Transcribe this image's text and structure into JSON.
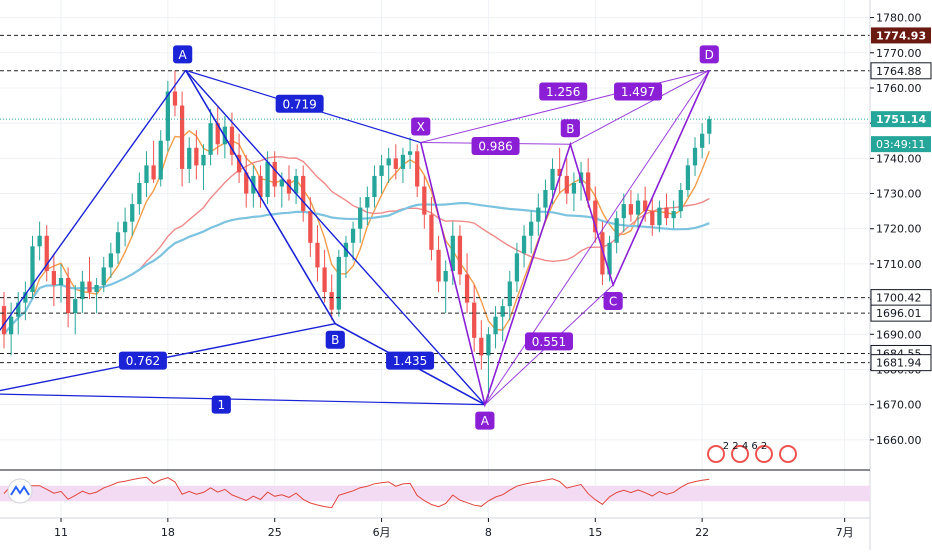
{
  "chart_data": {
    "type": "line",
    "instrument_axis": {
      "price_ticks": [
        1660,
        1670,
        1680,
        1690,
        1700,
        1710,
        1720,
        1730,
        1740,
        1750,
        1760,
        1770,
        1780
      ],
      "price_tick_labels": [
        "1660.00",
        "1670.00",
        "1680.00",
        "1690.00",
        "1700.00",
        "1710.00",
        "1720.00",
        "1730.00",
        "1740.00",
        "1750.00",
        "1760.00",
        "1770.00",
        "1780.00"
      ],
      "ylim": [
        1652,
        1785
      ]
    },
    "x_tick_labels": [
      {
        "i": 8,
        "label": "11"
      },
      {
        "i": 23,
        "label": "18"
      },
      {
        "i": 38,
        "label": "25"
      },
      {
        "i": 53,
        "label": "6月"
      },
      {
        "i": 68,
        "label": "8"
      },
      {
        "i": 83,
        "label": "15"
      },
      {
        "i": 98,
        "label": "22"
      },
      {
        "i": 118,
        "label": "7月"
      }
    ],
    "x_count": 122,
    "horizontal_levels": [
      {
        "value": 1774.93,
        "label": "1774.93",
        "style": "dashed",
        "badge_color": "#6b1a12"
      },
      {
        "value": 1764.88,
        "label": "1764.88",
        "style": "dashed",
        "badge_color": "#ffffff"
      },
      {
        "value": 1751.14,
        "label": "1751.14",
        "style": "dotted",
        "badge_color": "#26a69a"
      },
      {
        "value": 1700.42,
        "label": "1700.42",
        "style": "dashed",
        "badge_color": "#ffffff"
      },
      {
        "value": 1696.01,
        "label": "1696.01",
        "style": "dashed",
        "badge_color": "#ffffff"
      },
      {
        "value": 1684.55,
        "label": "1684.55",
        "style": "dashed",
        "badge_color": "#ffffff"
      },
      {
        "value": 1681.94,
        "label": "1681.94",
        "style": "dashed",
        "badge_color": "#ffffff"
      }
    ],
    "countdown_label": "03:49:11",
    "close_price": 1751.14,
    "pattern_blue": {
      "points": [
        {
          "label": "A",
          "i": 25.5,
          "price": 1765.0
        },
        {
          "label": "B",
          "i": 46.5,
          "price": 1693.0
        },
        {
          "label": "",
          "i": 67.5,
          "price": 1670.0
        }
      ],
      "left_ext": [
        {
          "i": -1,
          "price": 1693.0
        },
        {
          "i": -1,
          "price": 1673.0
        }
      ],
      "ratios": [
        {
          "text": "0.719",
          "i": 41.5,
          "price": 1755.5
        },
        {
          "text": "0.762",
          "i": 19.5,
          "price": 1682.5
        },
        {
          "text": "1.435",
          "i": 57,
          "price": 1682.5
        },
        {
          "text": "1",
          "i": 30.5,
          "price": 1670.0
        }
      ],
      "color": "#1b23d6"
    },
    "pattern_purple": {
      "points": [
        {
          "label": "X",
          "i": 58.5,
          "price": 1744.5
        },
        {
          "label": "A",
          "i": 67.5,
          "price": 1670.0
        },
        {
          "label": "B",
          "i": 79.5,
          "price": 1744.0
        },
        {
          "label": "C",
          "i": 85.5,
          "price": 1704.0
        },
        {
          "label": "D",
          "i": 99,
          "price": 1765.0
        }
      ],
      "ratios": [
        {
          "text": "0.986",
          "i": 69,
          "price": 1743.5
        },
        {
          "text": "1.256",
          "i": 78.5,
          "price": 1759.0
        },
        {
          "text": "1.497",
          "i": 89,
          "price": 1759.0
        },
        {
          "text": "0.551",
          "i": 76.5,
          "price": 1688.0
        }
      ],
      "color": "#8a1fd6"
    },
    "candles": [
      [
        1698,
        1702,
        1686,
        1690
      ],
      [
        1690,
        1699,
        1684,
        1695
      ],
      [
        1695,
        1702,
        1690,
        1699
      ],
      [
        1699,
        1705,
        1694,
        1702
      ],
      [
        1702,
        1718,
        1700,
        1715
      ],
      [
        1715,
        1722,
        1711,
        1718
      ],
      [
        1718,
        1721,
        1705,
        1708
      ],
      [
        1708,
        1713,
        1698,
        1704
      ],
      [
        1704,
        1710,
        1699,
        1706
      ],
      [
        1706,
        1709,
        1692,
        1696
      ],
      [
        1696,
        1704,
        1690,
        1700
      ],
      [
        1700,
        1708,
        1696,
        1705
      ],
      [
        1705,
        1712,
        1700,
        1702
      ],
      [
        1702,
        1706,
        1696,
        1704
      ],
      [
        1704,
        1712,
        1702,
        1709
      ],
      [
        1709,
        1716,
        1706,
        1713
      ],
      [
        1713,
        1722,
        1710,
        1719
      ],
      [
        1719,
        1726,
        1715,
        1722
      ],
      [
        1722,
        1730,
        1718,
        1727
      ],
      [
        1727,
        1736,
        1724,
        1733
      ],
      [
        1733,
        1742,
        1729,
        1738
      ],
      [
        1738,
        1745,
        1733,
        1734
      ],
      [
        1734,
        1748,
        1732,
        1745
      ],
      [
        1745,
        1762,
        1742,
        1759
      ],
      [
        1759,
        1765,
        1752,
        1755
      ],
      [
        1755,
        1759,
        1732,
        1737
      ],
      [
        1737,
        1746,
        1733,
        1743
      ],
      [
        1743,
        1748,
        1734,
        1738
      ],
      [
        1738,
        1744,
        1731,
        1741
      ],
      [
        1741,
        1754,
        1738,
        1750
      ],
      [
        1750,
        1755,
        1741,
        1744
      ],
      [
        1744,
        1752,
        1740,
        1749
      ],
      [
        1749,
        1753,
        1738,
        1741
      ],
      [
        1741,
        1747,
        1733,
        1736
      ],
      [
        1736,
        1741,
        1726,
        1730
      ],
      [
        1730,
        1738,
        1726,
        1735
      ],
      [
        1735,
        1738,
        1726,
        1729
      ],
      [
        1729,
        1742,
        1727,
        1739
      ],
      [
        1739,
        1742,
        1729,
        1732
      ],
      [
        1732,
        1736,
        1726,
        1734
      ],
      [
        1734,
        1738,
        1728,
        1730
      ],
      [
        1730,
        1737,
        1727,
        1735
      ],
      [
        1735,
        1738,
        1722,
        1725
      ],
      [
        1725,
        1729,
        1712,
        1716
      ],
      [
        1716,
        1721,
        1705,
        1709
      ],
      [
        1709,
        1714,
        1699,
        1702
      ],
      [
        1702,
        1707,
        1694,
        1697
      ],
      [
        1697,
        1714,
        1695,
        1712
      ],
      [
        1712,
        1718,
        1706,
        1716
      ],
      [
        1716,
        1722,
        1711,
        1720
      ],
      [
        1720,
        1729,
        1716,
        1726
      ],
      [
        1726,
        1732,
        1721,
        1729
      ],
      [
        1729,
        1738,
        1726,
        1735
      ],
      [
        1735,
        1741,
        1730,
        1738
      ],
      [
        1738,
        1743,
        1733,
        1740
      ],
      [
        1740,
        1744,
        1734,
        1737
      ],
      [
        1737,
        1743,
        1733,
        1741
      ],
      [
        1741,
        1746,
        1737,
        1742
      ],
      [
        1742,
        1744,
        1729,
        1732
      ],
      [
        1732,
        1735,
        1720,
        1724
      ],
      [
        1724,
        1729,
        1711,
        1714
      ],
      [
        1714,
        1718,
        1702,
        1705
      ],
      [
        1705,
        1711,
        1696,
        1708
      ],
      [
        1708,
        1722,
        1704,
        1718
      ],
      [
        1718,
        1721,
        1704,
        1707
      ],
      [
        1707,
        1713,
        1696,
        1699
      ],
      [
        1699,
        1704,
        1685,
        1689
      ],
      [
        1689,
        1694,
        1680,
        1684
      ],
      [
        1684,
        1692,
        1672,
        1690
      ],
      [
        1690,
        1698,
        1686,
        1695
      ],
      [
        1695,
        1700,
        1688,
        1698
      ],
      [
        1698,
        1708,
        1694,
        1705
      ],
      [
        1705,
        1716,
        1702,
        1713
      ],
      [
        1713,
        1721,
        1709,
        1718
      ],
      [
        1718,
        1725,
        1713,
        1722
      ],
      [
        1722,
        1730,
        1718,
        1726
      ],
      [
        1726,
        1734,
        1722,
        1731
      ],
      [
        1731,
        1740,
        1727,
        1737
      ],
      [
        1737,
        1743,
        1730,
        1735
      ],
      [
        1735,
        1740,
        1727,
        1730
      ],
      [
        1730,
        1736,
        1725,
        1733
      ],
      [
        1733,
        1739,
        1728,
        1736
      ],
      [
        1736,
        1740,
        1726,
        1728
      ],
      [
        1728,
        1732,
        1716,
        1719
      ],
      [
        1719,
        1722,
        1704,
        1707
      ],
      [
        1707,
        1718,
        1705,
        1716
      ],
      [
        1716,
        1725,
        1713,
        1723
      ],
      [
        1723,
        1730,
        1719,
        1727
      ],
      [
        1727,
        1731,
        1722,
        1724
      ],
      [
        1724,
        1730,
        1720,
        1728
      ],
      [
        1728,
        1732,
        1722,
        1725
      ],
      [
        1725,
        1729,
        1718,
        1721
      ],
      [
        1721,
        1728,
        1719,
        1726
      ],
      [
        1726,
        1730,
        1721,
        1723
      ],
      [
        1723,
        1728,
        1720,
        1725
      ],
      [
        1725,
        1733,
        1723,
        1731
      ],
      [
        1731,
        1740,
        1729,
        1738
      ],
      [
        1738,
        1746,
        1735,
        1743
      ],
      [
        1743,
        1750,
        1740,
        1747
      ],
      [
        1747,
        1752,
        1744,
        1751.14
      ]
    ],
    "indicator_lines": [
      {
        "name": "",
        "color": "#f39c4a",
        "period": 5
      },
      {
        "name": "",
        "color": "#f08a8a",
        "period": 20
      },
      {
        "name": "",
        "color": "#7cc3e0",
        "period": 55
      }
    ],
    "sub_pane": {
      "type": "line",
      "band": [
        30,
        70
      ],
      "color": "#e0463c",
      "band_color": "#f3dcf3"
    },
    "events_badge": {
      "label": "2 2 4 6 2"
    },
    "colors": {
      "up": "#26a69a",
      "down": "#ef5350",
      "grid": "#eef1f5",
      "axis_text": "#131722",
      "background": "#ffffff"
    }
  }
}
